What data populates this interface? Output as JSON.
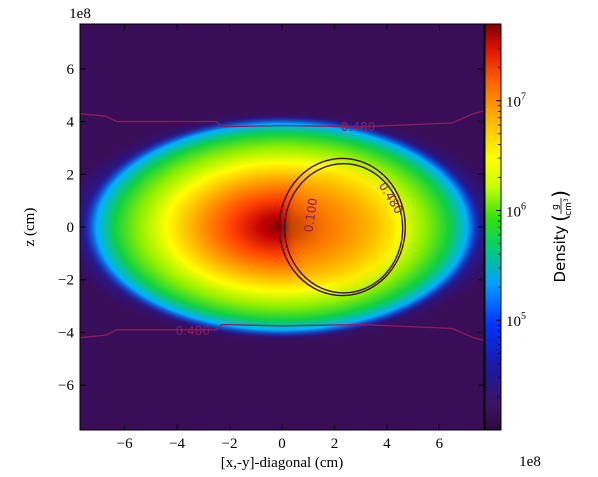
{
  "chart_data": {
    "type": "heatmap",
    "x_axis": {
      "label": "[x,-y]-diagonal (cm)",
      "multiplier": "1e8",
      "range": [
        -7.7,
        7.7
      ],
      "ticks": [
        -6,
        -4,
        -2,
        0,
        2,
        4,
        6
      ],
      "tick_labels": [
        "−6",
        "−4",
        "−2",
        "0",
        "2",
        "4",
        "6"
      ]
    },
    "y_axis": {
      "label": "z (cm)",
      "multiplier": "1e8",
      "range": [
        -7.7,
        7.7
      ],
      "ticks": [
        -6,
        -4,
        -2,
        0,
        2,
        4,
        6
      ],
      "tick_labels": [
        "−6",
        "−4",
        "−2",
        "0",
        "2",
        "4",
        "6"
      ]
    },
    "colorbar": {
      "label_main": "Density",
      "unit_numerator": "g",
      "unit_denominator": "cm",
      "unit_denominator_exp": "3",
      "scale": "log",
      "range": [
        10000,
        50000000
      ],
      "ticks": [
        {
          "value": 100000,
          "base": "10",
          "exp": "5"
        },
        {
          "value": 1000000,
          "base": "10",
          "exp": "6"
        },
        {
          "value": 10000000,
          "base": "10",
          "exp": "7"
        }
      ],
      "colormap": [
        "#2b0a3d",
        "#3c1361",
        "#1a1aa6",
        "#0033ff",
        "#00a0ff",
        "#00d070",
        "#30e010",
        "#c8ff00",
        "#ffff00",
        "#ffb000",
        "#ff6000",
        "#e01000",
        "#7a0000"
      ]
    },
    "field": {
      "center_main": [
        0,
        0
      ],
      "peak_density": 50000000,
      "companion_center": [
        2.3,
        0.0
      ],
      "companion_radius": [
        2.4,
        2.6
      ]
    },
    "contours": [
      {
        "label": "0.480",
        "kind": "upper-band",
        "y_level": 4.0
      },
      {
        "label": "0.480",
        "kind": "lower-band",
        "y_level": -3.9
      },
      {
        "label": "0.480",
        "kind": "companion-outer"
      },
      {
        "label": "0.100",
        "kind": "companion-inner"
      }
    ]
  }
}
